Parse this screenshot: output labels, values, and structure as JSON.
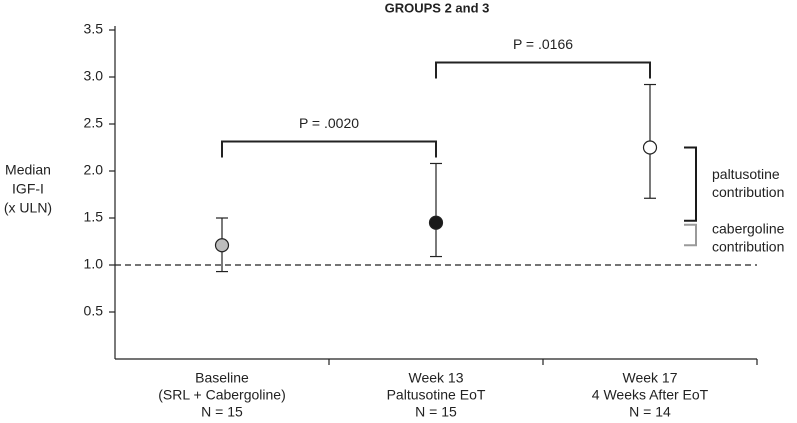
{
  "chart_data": {
    "type": "errorpoint",
    "title": "GROUPS 2 and 3",
    "y_label": [
      "Median",
      "IGF-I",
      "(x ULN)"
    ],
    "categories": [
      [
        "Baseline",
        "(SRL + Cabergoline)",
        "N = 15"
      ],
      [
        "Week 13",
        "Paltusotine EoT",
        "N = 15"
      ],
      [
        "Week 17",
        "4 Weeks After EoT",
        "N = 14"
      ]
    ],
    "values": [
      1.21,
      1.45,
      2.25
    ],
    "lower": [
      0.93,
      1.09,
      1.71
    ],
    "upper": [
      1.5,
      2.08,
      2.92
    ],
    "colors": [
      "#bdbdbd",
      "#1a1a1a",
      "#ffffff"
    ],
    "ylim": [
      0,
      3.5
    ],
    "yticks": [
      0.5,
      {
        "value": 1.0,
        "label": "1.0"
      },
      1.5,
      {
        "value": 2.0,
        "label": "2.0"
      },
      2.5,
      {
        "value": 3.0,
        "label": "3.0"
      },
      3.5
    ],
    "reference_line": 1.0,
    "comparisons": [
      {
        "from": 0,
        "to": 1,
        "label": "P = .0020"
      },
      {
        "from": 1,
        "to": 2,
        "label": "P = .0166"
      }
    ],
    "contributions": [
      {
        "label": [
          "paltusotine",
          "contribution"
        ],
        "color": "#1a1a1a"
      },
      {
        "label": [
          "cabergoline",
          "contribution"
        ],
        "color": "#9a9a9a"
      }
    ]
  }
}
